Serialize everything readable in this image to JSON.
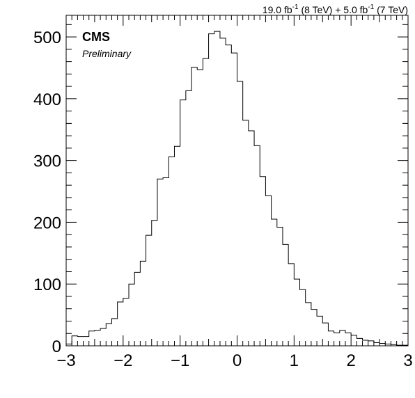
{
  "lumi_text": {
    "l1": "19.0 fb",
    "s1": "-1",
    "m": " (8 TeV) + 5.0 fb",
    "s2": "-1",
    "e": " (7 TeV)"
  },
  "labels": {
    "experiment": "CMS",
    "status": "Preliminary"
  },
  "chart_data": {
    "type": "histogram",
    "title": "",
    "xlabel": "",
    "ylabel": "",
    "xlim": [
      -3,
      3
    ],
    "ylim": [
      0,
      535
    ],
    "x_ticks": [
      -3,
      -2,
      -1,
      0,
      1,
      2,
      3
    ],
    "x_tick_labels": [
      "−3",
      "−2",
      "−1",
      "0",
      "1",
      "2",
      "3"
    ],
    "y_ticks": [
      0,
      100,
      200,
      300,
      400,
      500
    ],
    "y_tick_labels": [
      "0",
      "100",
      "200",
      "300",
      "400",
      "500"
    ],
    "grid": false,
    "line_color": "#000000",
    "bin_edges_start": -3.0,
    "bin_width": 0.1,
    "values": [
      3,
      16,
      15,
      15,
      24,
      25,
      28,
      36,
      44,
      71,
      77,
      100,
      119,
      137,
      179,
      203,
      270,
      272,
      306,
      323,
      398,
      413,
      451,
      447,
      465,
      505,
      509,
      498,
      487,
      474,
      428,
      365,
      348,
      324,
      274,
      243,
      205,
      192,
      164,
      133,
      108,
      91,
      70,
      59,
      48,
      37,
      24,
      21,
      25,
      21,
      17,
      12,
      9,
      8,
      5,
      4,
      3,
      2,
      1,
      1
    ]
  }
}
